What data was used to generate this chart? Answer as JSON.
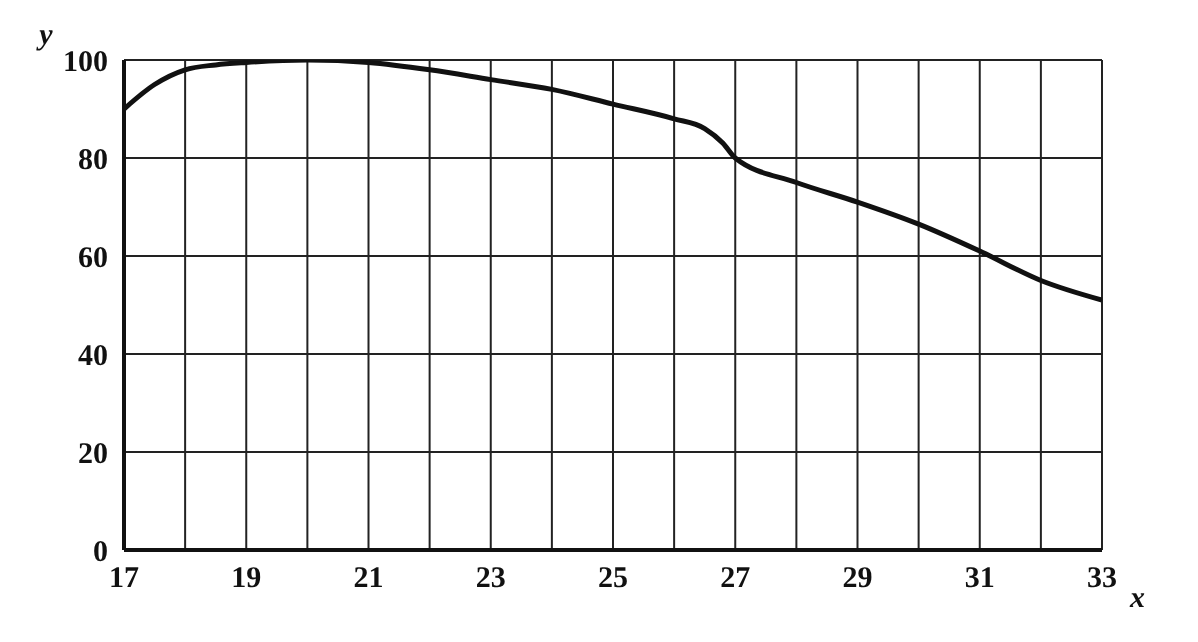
{
  "chart_data": {
    "type": "line",
    "xlabel": "x",
    "ylabel": "y",
    "x": [
      17,
      17.5,
      18,
      18.5,
      19,
      20,
      21,
      22,
      23,
      24,
      25,
      26,
      26.5,
      26.8,
      27,
      28,
      29,
      30,
      31,
      32,
      33
    ],
    "series": [
      {
        "color": "#111111",
        "values": [
          90,
          95,
          98,
          99,
          99.5,
          100,
          99.5,
          98,
          96,
          94,
          91,
          88,
          86,
          83,
          80,
          75,
          71,
          66.5,
          61,
          55,
          51
        ]
      }
    ],
    "xlim": [
      17,
      33
    ],
    "ylim": [
      0,
      100
    ],
    "xticks": [
      17,
      {
        "value": 18,
        "label": null
      },
      19,
      {
        "value": 20,
        "label": null
      },
      21,
      {
        "value": 22,
        "label": null
      },
      23,
      {
        "value": 24,
        "label": null
      },
      25,
      {
        "value": 26,
        "label": null
      },
      27,
      {
        "value": 28,
        "label": null
      },
      29,
      {
        "value": 30,
        "label": null
      },
      31,
      {
        "value": 32,
        "label": null
      },
      33
    ],
    "yticks": [
      0,
      20,
      40,
      60,
      80,
      100
    ],
    "grid": true,
    "marker": "none",
    "line_style": "solid",
    "legend": false
  }
}
